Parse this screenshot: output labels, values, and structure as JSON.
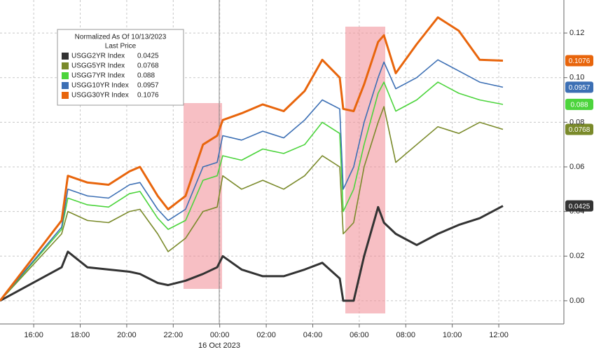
{
  "chart_data": {
    "type": "line",
    "legend_title": "Normalized As Of 10/13/2023",
    "legend_subtitle": "Last Price",
    "x_sublabel": "16 Oct 2023",
    "x": [
      14.55,
      17.2,
      17.47,
      18.31,
      19.22,
      20.12,
      20.57,
      21.33,
      21.78,
      22.53,
      23.28,
      23.89,
      24.13,
      24.94,
      25.85,
      26.75,
      27.65,
      28.41,
      29.16,
      29.31,
      29.76,
      30.21,
      30.81,
      31.06,
      31.57,
      32.47,
      33.38,
      34.28,
      35.18,
      36.18
    ],
    "series": [
      {
        "name": "USGG2YR Index",
        "color": "#333333",
        "last": 0.0425,
        "values": [
          0,
          0.015,
          0.022,
          0.015,
          0.014,
          0.013,
          0.012,
          0.008,
          0.007,
          0.009,
          0.012,
          0.015,
          0.02,
          0.014,
          0.011,
          0.011,
          0.014,
          0.017,
          0.01,
          0.0,
          0.0,
          0.02,
          0.042,
          0.035,
          0.03,
          0.025,
          0.03,
          0.034,
          0.037,
          0.0425
        ]
      },
      {
        "name": "USGG5YR Index",
        "color": "#7a8a2a",
        "last": 0.0768,
        "values": [
          0,
          0.03,
          0.04,
          0.036,
          0.035,
          0.04,
          0.041,
          0.03,
          0.022,
          0.028,
          0.04,
          0.042,
          0.056,
          0.05,
          0.054,
          0.05,
          0.056,
          0.065,
          0.06,
          0.03,
          0.035,
          0.06,
          0.08,
          0.087,
          0.062,
          0.07,
          0.078,
          0.075,
          0.08,
          0.0768
        ]
      },
      {
        "name": "USGG7YR Index",
        "color": "#4cd43c",
        "last": 0.088,
        "values": [
          0,
          0.032,
          0.046,
          0.043,
          0.042,
          0.048,
          0.049,
          0.037,
          0.032,
          0.036,
          0.054,
          0.056,
          0.065,
          0.063,
          0.068,
          0.066,
          0.07,
          0.08,
          0.075,
          0.04,
          0.05,
          0.07,
          0.093,
          0.098,
          0.085,
          0.09,
          0.098,
          0.093,
          0.09,
          0.088
        ]
      },
      {
        "name": "USGG10YR Index",
        "color": "#3c6fb4",
        "last": 0.0957,
        "values": [
          0,
          0.033,
          0.05,
          0.047,
          0.046,
          0.052,
          0.053,
          0.041,
          0.036,
          0.041,
          0.06,
          0.062,
          0.074,
          0.072,
          0.076,
          0.073,
          0.081,
          0.09,
          0.086,
          0.05,
          0.06,
          0.08,
          0.1,
          0.107,
          0.095,
          0.1,
          0.108,
          0.103,
          0.098,
          0.0957
        ]
      },
      {
        "name": "USGG30YR Index",
        "color": "#e8650c",
        "last": 0.1076,
        "values": [
          0,
          0.036,
          0.056,
          0.053,
          0.052,
          0.058,
          0.06,
          0.047,
          0.041,
          0.047,
          0.07,
          0.074,
          0.081,
          0.084,
          0.088,
          0.085,
          0.094,
          0.108,
          0.1,
          0.086,
          0.085,
          0.097,
          0.116,
          0.119,
          0.102,
          0.115,
          0.127,
          0.121,
          0.108,
          0.1076
        ]
      }
    ],
    "xlim": [
      14.55,
      38.8
    ],
    "xticks": [
      {
        "value": 16,
        "label": "16:00"
      },
      {
        "value": 18,
        "label": "18:00"
      },
      {
        "value": 20,
        "label": "20:00"
      },
      {
        "value": 22,
        "label": "22:00"
      },
      {
        "value": 24,
        "label": "00:00"
      },
      {
        "value": 26,
        "label": "02:00"
      },
      {
        "value": 28,
        "label": "04:00"
      },
      {
        "value": 30,
        "label": "06:00"
      },
      {
        "value": 32,
        "label": "08:00"
      },
      {
        "value": 34,
        "label": "10:00"
      },
      {
        "value": 36,
        "label": "12:00"
      }
    ],
    "ylim": [
      -0.0104,
      0.1348
    ],
    "yticks": [
      {
        "value": 0,
        "label": "0.00"
      },
      0.02,
      0.04,
      0.06,
      0.08,
      {
        "value": 0.1,
        "label": "0.10"
      },
      0.12
    ],
    "grid": true
  }
}
